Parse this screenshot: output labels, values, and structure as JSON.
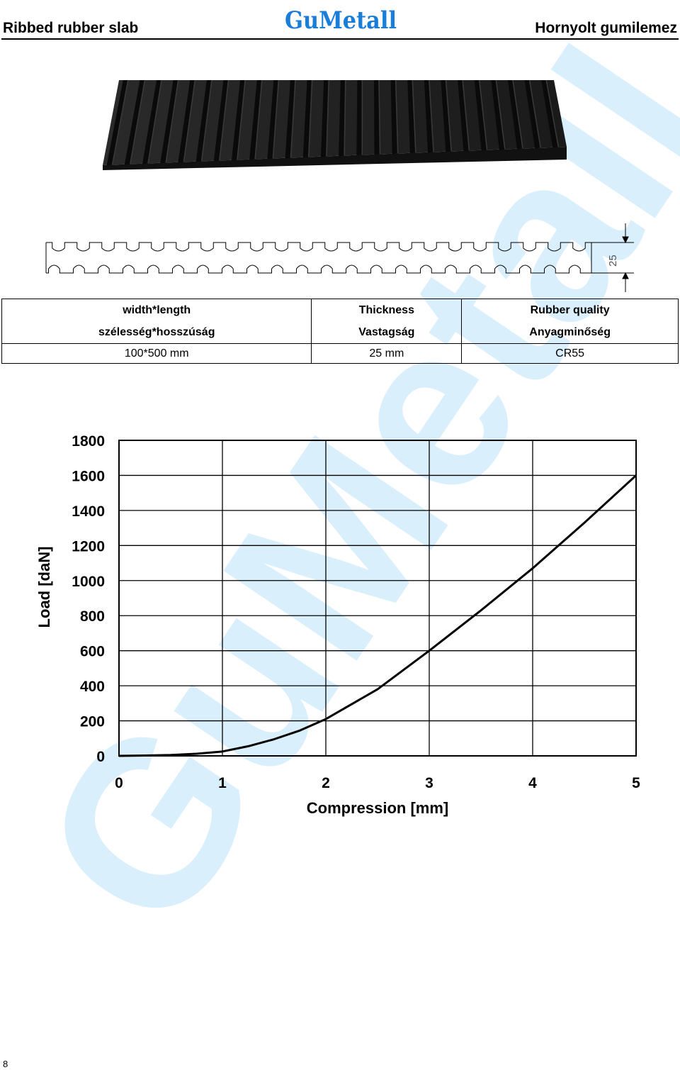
{
  "header": {
    "left_title": "Ribbed rubber slab",
    "right_title": "Hornyolt gumilemez",
    "logo_text": "GuMetall"
  },
  "watermark_text": "GuMetall",
  "brand_colors": {
    "logo_blue": "#1a7ed8",
    "watermark_blue": "#d9effc"
  },
  "profile_dimension_label": "25",
  "specs_table": {
    "headers_en": [
      "width*length",
      "Thickness",
      "Rubber quality"
    ],
    "headers_hu": [
      "szélesség*hosszúság",
      "Vastagság",
      "Anyagminőség"
    ],
    "values": [
      "100*500 mm",
      "25 mm",
      "CR55"
    ]
  },
  "chart_data": {
    "type": "line",
    "xlabel": "Compression [mm]",
    "ylabel": "Load [daN]",
    "xlim": [
      0,
      5
    ],
    "ylim": [
      0,
      1800
    ],
    "x_ticks": [
      "0",
      "1",
      "2",
      "3",
      "4",
      "5"
    ],
    "y_ticks": [
      "0",
      "200",
      "400",
      "600",
      "800",
      "1000",
      "1200",
      "1400",
      "1600",
      "1800"
    ],
    "grid": true,
    "series": [
      {
        "x": [
          0,
          0.25,
          0.5,
          0.75,
          1,
          1.25,
          1.5,
          1.75,
          2,
          2.5,
          3,
          3.5,
          4,
          4.5,
          5
        ],
        "y": [
          0,
          2,
          5,
          12,
          25,
          55,
          95,
          145,
          210,
          380,
          600,
          830,
          1070,
          1330,
          1600
        ]
      }
    ]
  },
  "page_number": "8"
}
